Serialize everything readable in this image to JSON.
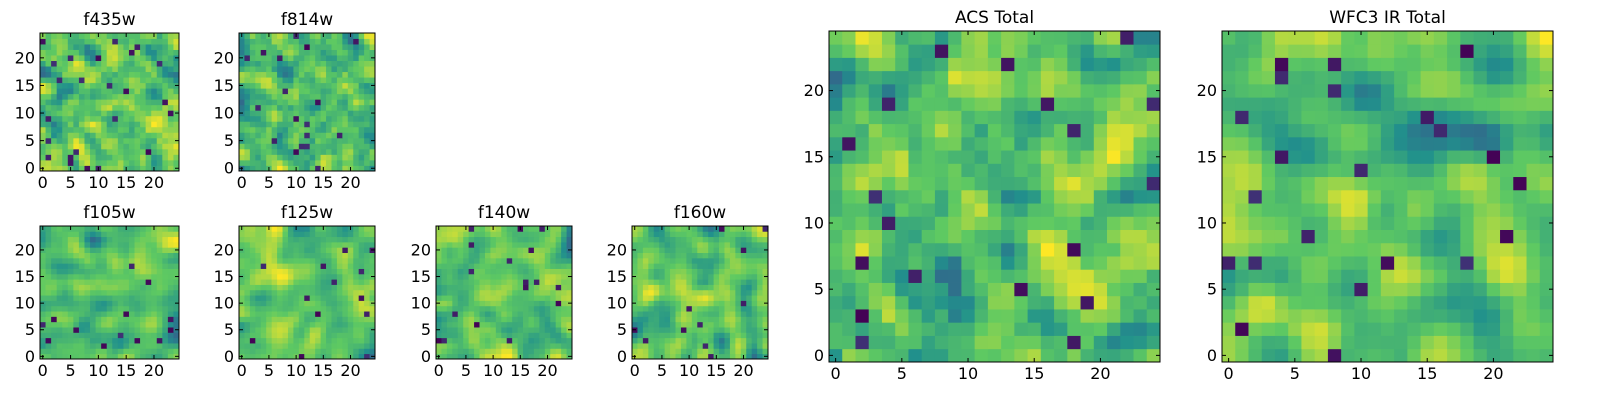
{
  "figure": {
    "colormap": "viridis"
  },
  "colors": {
    "viridis_stops": [
      "#440154",
      "#3b528b",
      "#21918c",
      "#5ec962",
      "#fde725"
    ],
    "axis": "#000000"
  },
  "chart_data": [
    {
      "type": "heatmap",
      "title": "f435w",
      "grid_size": 25,
      "xlim": [
        0,
        24
      ],
      "ylim": [
        0,
        24
      ],
      "xticks": [
        "0",
        "5",
        "10",
        "15",
        "20"
      ],
      "yticks": [
        "0",
        "5",
        "10",
        "15",
        "20"
      ],
      "seed": 11,
      "smoothing": 0.15,
      "values": []
    },
    {
      "type": "heatmap",
      "title": "f814w",
      "grid_size": 25,
      "xlim": [
        0,
        24
      ],
      "ylim": [
        0,
        24
      ],
      "xticks": [
        "0",
        "5",
        "10",
        "15",
        "20"
      ],
      "yticks": [
        "0",
        "5",
        "10",
        "15",
        "20"
      ],
      "seed": 23,
      "smoothing": 0.15,
      "values": []
    },
    {
      "type": "heatmap",
      "title": "f105w",
      "grid_size": 25,
      "xlim": [
        0,
        24
      ],
      "ylim": [
        0,
        24
      ],
      "xticks": [
        "0",
        "5",
        "10",
        "15",
        "20"
      ],
      "yticks": [
        "0",
        "5",
        "10",
        "15",
        "20"
      ],
      "seed": 37,
      "smoothing": 0.45,
      "values": []
    },
    {
      "type": "heatmap",
      "title": "f125w",
      "grid_size": 25,
      "xlim": [
        0,
        24
      ],
      "ylim": [
        0,
        24
      ],
      "xticks": [
        "0",
        "5",
        "10",
        "15",
        "20"
      ],
      "yticks": [
        "0",
        "5",
        "10",
        "15",
        "20"
      ],
      "seed": 41,
      "smoothing": 0.45,
      "values": []
    },
    {
      "type": "heatmap",
      "title": "f140w",
      "grid_size": 25,
      "xlim": [
        0,
        24
      ],
      "ylim": [
        0,
        24
      ],
      "xticks": [
        "0",
        "5",
        "10",
        "15",
        "20"
      ],
      "yticks": [
        "0",
        "5",
        "10",
        "15",
        "20"
      ],
      "seed": 53,
      "smoothing": 0.5,
      "values": []
    },
    {
      "type": "heatmap",
      "title": "f160w",
      "grid_size": 25,
      "xlim": [
        0,
        24
      ],
      "ylim": [
        0,
        24
      ],
      "xticks": [
        "0",
        "5",
        "10",
        "15",
        "20"
      ],
      "yticks": [
        "0",
        "5",
        "10",
        "15",
        "20"
      ],
      "seed": 67,
      "smoothing": 0.4,
      "values": []
    },
    {
      "type": "heatmap",
      "title": "ACS Total",
      "grid_size": 25,
      "xlim": [
        0,
        24
      ],
      "ylim": [
        0,
        24
      ],
      "xticks": [
        "0",
        "5",
        "10",
        "15",
        "20"
      ],
      "yticks": [
        "0",
        "5",
        "10",
        "15",
        "20"
      ],
      "seed": 79,
      "smoothing": 0.25,
      "values": []
    },
    {
      "type": "heatmap",
      "title": "WFC3 IR Total",
      "grid_size": 25,
      "xlim": [
        0,
        24
      ],
      "ylim": [
        0,
        24
      ],
      "xticks": [
        "0",
        "5",
        "10",
        "15",
        "20"
      ],
      "yticks": [
        "0",
        "5",
        "10",
        "15",
        "20"
      ],
      "seed": 97,
      "smoothing": 0.55,
      "values": []
    }
  ]
}
